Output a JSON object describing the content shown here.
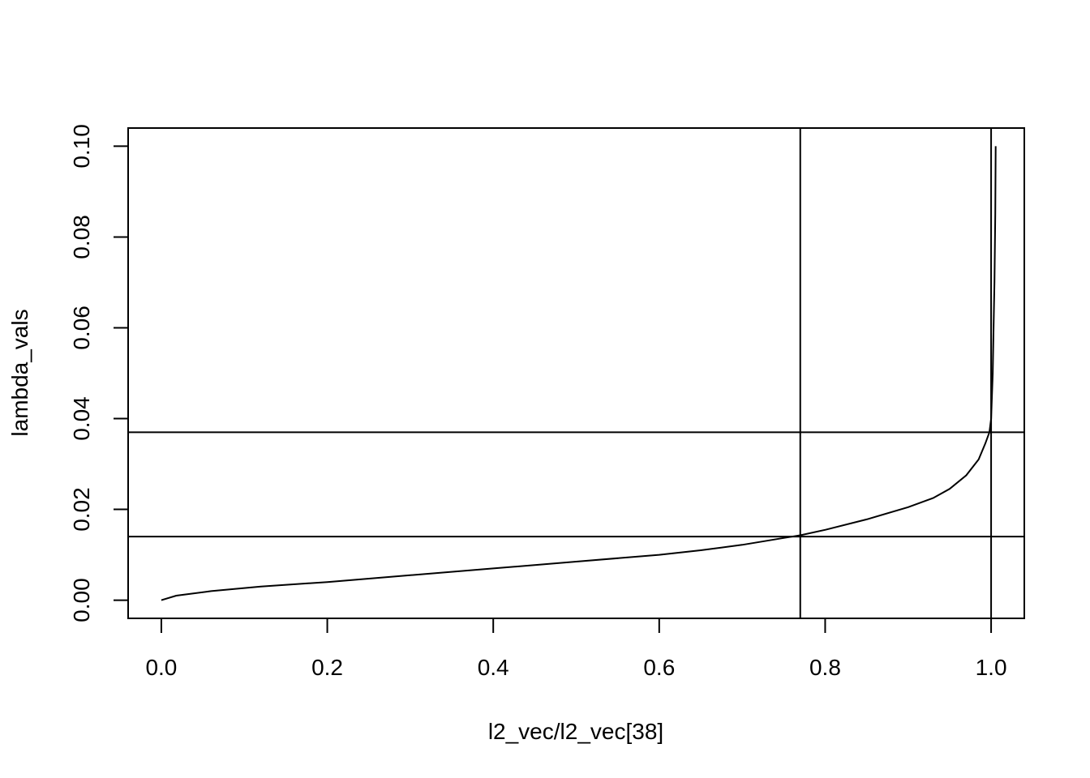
{
  "chart_data": {
    "type": "line",
    "title": "",
    "xlabel": "l2_vec/l2_vec[38]",
    "ylabel": "lambda_vals",
    "xlim": [
      -0.04,
      1.04
    ],
    "ylim": [
      -0.004,
      0.104
    ],
    "x_ticks": [
      0.0,
      0.2,
      0.4,
      0.6,
      0.8,
      1.0
    ],
    "x_tick_labels": [
      "0.0",
      "0.2",
      "0.4",
      "0.6",
      "0.8",
      "1.0"
    ],
    "y_ticks": [
      0.0,
      0.02,
      0.04,
      0.06,
      0.08,
      0.1
    ],
    "y_tick_labels": [
      "0.00",
      "0.02",
      "0.04",
      "0.06",
      "0.08",
      "0.10"
    ],
    "grid": false,
    "legend": "none",
    "vlines": [
      0.77,
      1.0
    ],
    "hlines": [
      0.014,
      0.037
    ],
    "series": [
      {
        "x": [
          0.0,
          0.018,
          0.06,
          0.12,
          0.2,
          0.3,
          0.4,
          0.5,
          0.6,
          0.65,
          0.7,
          0.75,
          0.77,
          0.8,
          0.85,
          0.9,
          0.93,
          0.95,
          0.97,
          0.985,
          0.993,
          0.998,
          1.0,
          1.002,
          1.003,
          1.004,
          1.005,
          1.0055
        ],
        "y": [
          0.0,
          0.001,
          0.002,
          0.003,
          0.004,
          0.0055,
          0.007,
          0.0085,
          0.01,
          0.011,
          0.0122,
          0.0137,
          0.0143,
          0.0155,
          0.0178,
          0.0205,
          0.0225,
          0.0245,
          0.0275,
          0.031,
          0.0345,
          0.037,
          0.04,
          0.05,
          0.06,
          0.07,
          0.085,
          0.1
        ]
      }
    ]
  }
}
